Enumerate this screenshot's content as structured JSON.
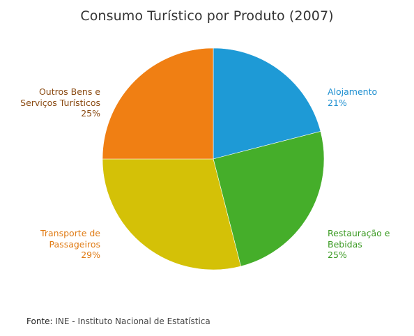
{
  "chart_data": {
    "type": "pie",
    "title": "Consumo Turístico por Produto (2007)",
    "slices": [
      {
        "label_lines": [
          "Alojamento"
        ],
        "percent_label": "21%",
        "value": 21,
        "color": "#1e9ad6",
        "label_color": "#1e8fd0"
      },
      {
        "label_lines": [
          "Restauração e",
          "Bebidas"
        ],
        "percent_label": "25%",
        "value": 25,
        "color": "#45ae2a",
        "label_color": "#3a9a22"
      },
      {
        "label_lines": [
          "Transporte de",
          "Passageiros"
        ],
        "percent_label": "29%",
        "value": 29,
        "color": "#d4c107",
        "label_color": "#e07b14"
      },
      {
        "label_lines": [
          "Outros Bens e",
          "Serviços Turísticos"
        ],
        "percent_label": "25%",
        "value": 25,
        "color": "#f07f13",
        "label_color": "#8a4a12"
      }
    ],
    "start_angle": "12 o'clock",
    "direction": "clockwise",
    "legend": "none (direct labels)"
  },
  "source": {
    "key": "Fonte:",
    "text": "INE - Instituto Nacional de Estatística"
  }
}
